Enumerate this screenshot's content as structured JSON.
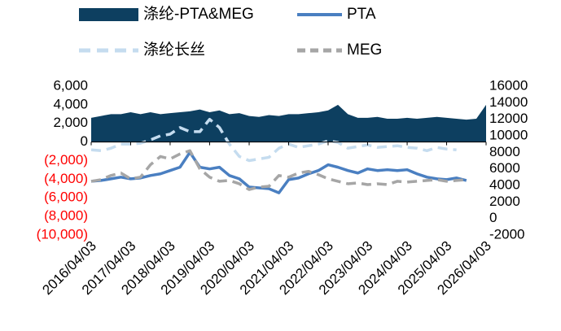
{
  "chart_data": {
    "type": "line",
    "x": [
      "2016/04/03",
      "2016/07/03",
      "2016/10/03",
      "2017/01/03",
      "2017/04/03",
      "2017/07/03",
      "2017/10/03",
      "2018/01/03",
      "2018/04/03",
      "2018/07/03",
      "2018/10/03",
      "2019/01/03",
      "2019/04/03",
      "2019/07/03",
      "2019/10/03",
      "2020/01/03",
      "2020/04/03",
      "2020/07/03",
      "2020/10/03",
      "2021/01/03",
      "2021/04/03",
      "2021/07/03",
      "2021/10/03",
      "2022/01/03",
      "2022/04/03",
      "2022/07/03",
      "2022/10/03",
      "2023/01/03",
      "2023/04/03",
      "2023/07/03",
      "2023/10/03",
      "2024/01/03",
      "2024/04/03",
      "2024/07/03",
      "2024/10/03",
      "2025/01/03",
      "2025/04/03",
      "2025/07/03",
      "2025/10/03",
      "2026/01/03",
      "2026/04/03"
    ],
    "series": [
      {
        "name": "涤纶-PTA&MEG",
        "color": "#0d3f60",
        "kind": "area",
        "values": [
          2600,
          2800,
          3000,
          3000,
          3200,
          3000,
          3200,
          3000,
          3100,
          3200,
          3300,
          3500,
          3200,
          3400,
          3000,
          3100,
          2800,
          2700,
          2900,
          2800,
          3000,
          3000,
          3100,
          3200,
          3400,
          4000,
          3000,
          2600,
          2600,
          2700,
          2500,
          2500,
          2600,
          2500,
          2600,
          2700,
          2600,
          2500,
          2400,
          2500,
          4000
        ]
      },
      {
        "name": "PTA",
        "color": "#4a7fc1",
        "axis": "y2",
        "dash": false,
        "values": [
          4500,
          4600,
          4800,
          5000,
          4800,
          4900,
          5200,
          5400,
          5800,
          6200,
          8000,
          6200,
          6000,
          6200,
          5200,
          4800,
          3800,
          3700,
          3600,
          3100,
          4700,
          4900,
          5400,
          5800,
          6500,
          6200,
          5800,
          5500,
          6000,
          5800,
          5900,
          5800,
          5900,
          5400,
          5000,
          4800,
          4700,
          4900,
          4600,
          null,
          null
        ]
      },
      {
        "name": "涤纶长丝",
        "color": "#c5dcef",
        "axis": "y2",
        "dash": true,
        "values": [
          8300,
          8200,
          8500,
          9000,
          9000,
          9100,
          9500,
          10000,
          10200,
          11000,
          10500,
          10500,
          12000,
          11000,
          9000,
          7500,
          7000,
          7200,
          7400,
          8500,
          9000,
          8600,
          8800,
          9000,
          9400,
          9200,
          8500,
          8700,
          8900,
          8600,
          8700,
          8800,
          8600,
          8500,
          8200,
          8600,
          8400,
          8300,
          null,
          null,
          null
        ]
      },
      {
        "name": "MEG",
        "color": "#a6a6a6",
        "axis": "y2",
        "dash": true,
        "values": [
          4500,
          4700,
          5200,
          5500,
          4800,
          5000,
          6500,
          7500,
          7200,
          7800,
          8200,
          6000,
          5000,
          4500,
          4600,
          4200,
          3500,
          3800,
          3900,
          5200,
          5000,
          5500,
          5700,
          5300,
          4800,
          4500,
          4200,
          4300,
          4100,
          4200,
          4100,
          4500,
          4400,
          4500,
          4600,
          4700,
          4500,
          4600,
          4700,
          null,
          null
        ]
      }
    ],
    "xticks": [
      "2016/04/03",
      "2017/04/03",
      "2018/04/03",
      "2019/04/03",
      "2020/04/03",
      "2021/04/03",
      "2022/04/03",
      "2023/04/03",
      "2024/04/03",
      "2025/04/03",
      "2026/04/03"
    ],
    "ylim": [
      -10000,
      6000
    ],
    "yticks": [
      {
        "value": 6000,
        "label": "6,000"
      },
      {
        "value": 4000,
        "label": "4,000"
      },
      {
        "value": 2000,
        "label": "2,000"
      },
      0,
      {
        "value": -2000,
        "label": "(2,000)"
      },
      {
        "value": -4000,
        "label": "(4,000)"
      },
      {
        "value": -6000,
        "label": "(6,000)"
      },
      {
        "value": -8000,
        "label": "(8,000)"
      },
      {
        "value": -10000,
        "label": "(10,000)"
      }
    ],
    "negative_label_color": "#ff0000",
    "y2lim": [
      -2000,
      16000
    ],
    "y2ticks": [
      16000,
      14000,
      12000,
      10000,
      8000,
      6000,
      4000,
      2000,
      0,
      -2000
    ]
  }
}
